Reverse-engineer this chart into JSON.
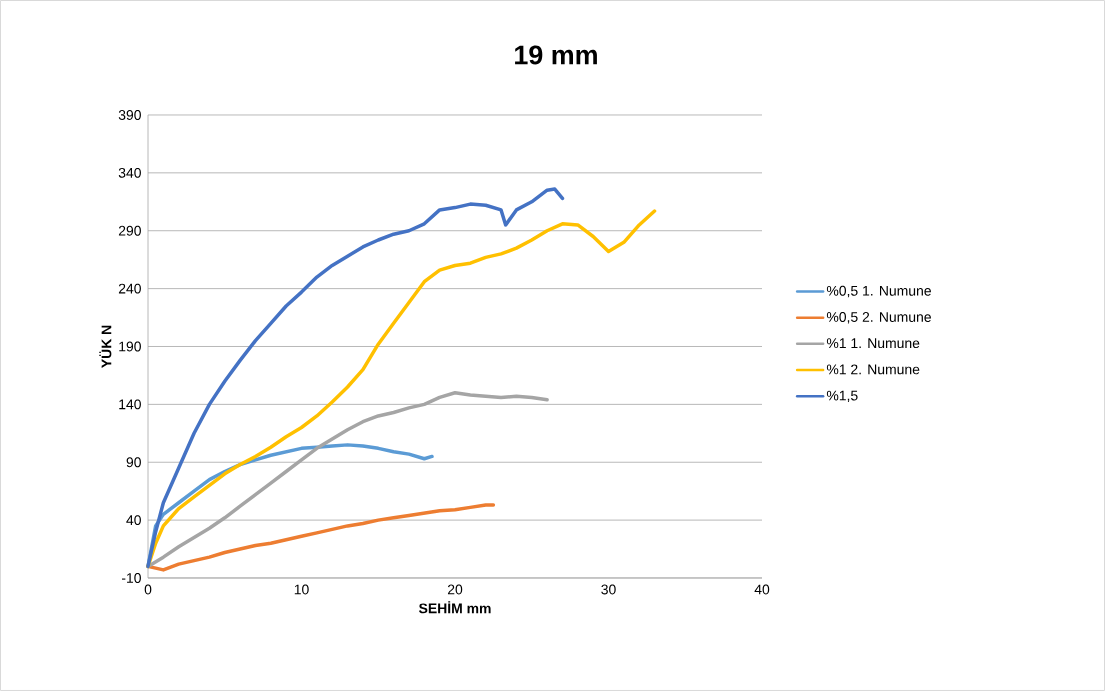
{
  "chart_data": {
    "type": "line",
    "title": "19 mm",
    "xlabel": "SEHİM mm",
    "ylabel": "YÜK N",
    "xlim": [
      0,
      40
    ],
    "xticks": [
      0,
      10,
      20,
      30,
      40
    ],
    "ylim": [
      -10,
      390
    ],
    "yticks": [
      -10,
      40,
      90,
      140,
      190,
      240,
      290,
      340,
      390
    ],
    "grid": "y",
    "legend": "right",
    "marker": "none",
    "line_style": "solid",
    "series": [
      {
        "name": "%0,5  1. Numune",
        "color": "#5b9bd5",
        "x": [
          0,
          0.5,
          1,
          2,
          3,
          4,
          5,
          6,
          7,
          8,
          9,
          10,
          11,
          12,
          13,
          14,
          15,
          16,
          17,
          18,
          18.5
        ],
        "values": [
          0,
          35,
          45,
          55,
          65,
          75,
          82,
          88,
          92,
          96,
          99,
          102,
          103,
          104,
          105,
          104,
          102,
          99,
          97,
          93,
          95
        ]
      },
      {
        "name": "%0,5  2. Numune",
        "color": "#ed7d31",
        "x": [
          0,
          1,
          2,
          3,
          4,
          5,
          6,
          7,
          8,
          9,
          10,
          11,
          12,
          13,
          14,
          15,
          16,
          17,
          18,
          19,
          20,
          21,
          22,
          22.5
        ],
        "values": [
          0,
          -3,
          2,
          5,
          8,
          12,
          15,
          18,
          20,
          23,
          26,
          29,
          32,
          35,
          37,
          40,
          42,
          44,
          46,
          48,
          49,
          51,
          53,
          53
        ]
      },
      {
        "name": "%1  1. Numune",
        "color": "#a5a5a5",
        "x": [
          0,
          1,
          2,
          3,
          4,
          5,
          6,
          7,
          8,
          9,
          10,
          11,
          12,
          13,
          14,
          15,
          16,
          17,
          18,
          19,
          20,
          21,
          22,
          23,
          24,
          25,
          26
        ],
        "values": [
          0,
          8,
          17,
          25,
          33,
          42,
          52,
          62,
          72,
          82,
          92,
          102,
          110,
          118,
          125,
          130,
          133,
          137,
          140,
          146,
          150,
          148,
          147,
          146,
          147,
          146,
          144
        ]
      },
      {
        "name": "%1  2. Numune",
        "color": "#ffc000",
        "x": [
          0,
          0.5,
          1,
          2,
          3,
          4,
          5,
          6,
          7,
          8,
          9,
          10,
          11,
          12,
          13,
          14,
          15,
          16,
          17,
          18,
          19,
          20,
          21,
          22,
          23,
          24,
          25,
          26,
          27,
          28,
          29,
          30,
          31,
          32,
          33
        ],
        "values": [
          0,
          20,
          35,
          50,
          60,
          70,
          80,
          88,
          95,
          103,
          112,
          120,
          130,
          142,
          155,
          170,
          192,
          210,
          228,
          246,
          256,
          260,
          262,
          267,
          270,
          275,
          282,
          290,
          296,
          295,
          285,
          272,
          280,
          295,
          307
        ]
      },
      {
        "name": "%1,5",
        "color": "#4472c4",
        "x": [
          0,
          0.5,
          1,
          2,
          3,
          4,
          5,
          6,
          7,
          8,
          9,
          10,
          11,
          12,
          13,
          14,
          15,
          16,
          17,
          18,
          19,
          20,
          21,
          22,
          23,
          23.3,
          24,
          25,
          26,
          26.5,
          27
        ],
        "values": [
          0,
          30,
          55,
          85,
          115,
          140,
          160,
          178,
          195,
          210,
          225,
          237,
          250,
          260,
          268,
          276,
          282,
          287,
          290,
          296,
          308,
          310,
          313,
          312,
          308,
          295,
          308,
          315,
          325,
          326,
          318
        ]
      }
    ]
  }
}
